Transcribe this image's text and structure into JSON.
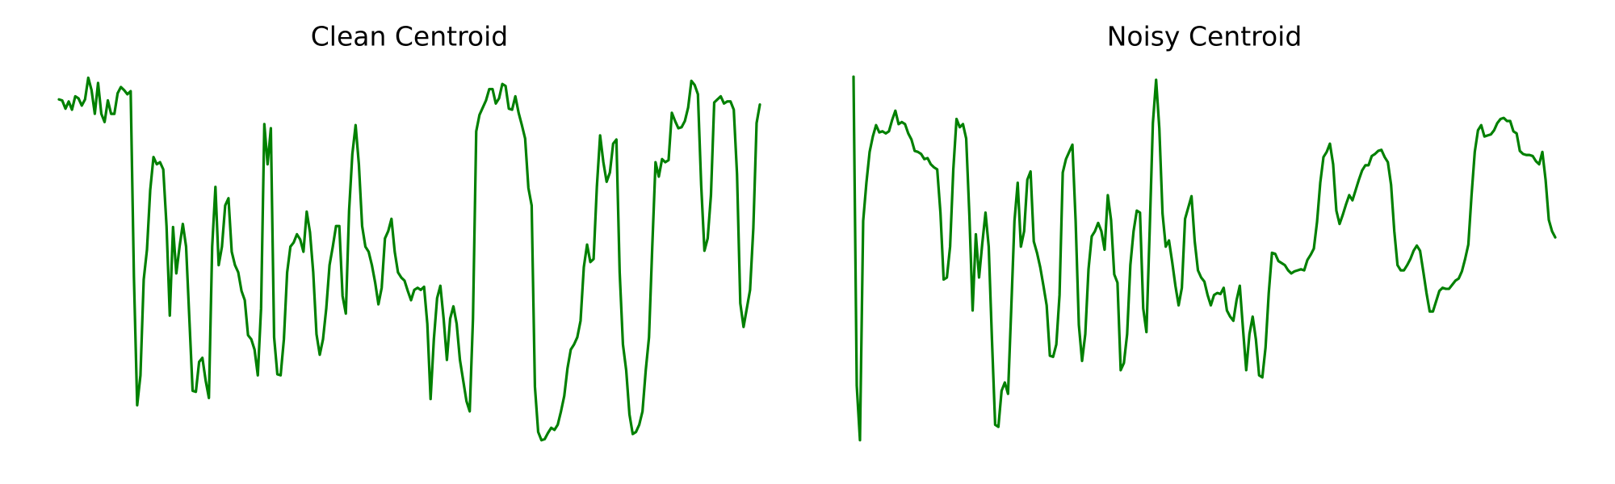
{
  "chart_data": [
    {
      "type": "line",
      "title": "Clean Centroid",
      "color": "#008000",
      "ylim": [
        0,
        380
      ],
      "values": [
        343,
        342,
        334,
        341,
        333,
        346,
        344,
        337,
        343,
        364,
        352,
        329,
        359,
        329,
        321,
        342,
        329,
        329,
        349,
        355,
        352,
        348,
        351,
        170,
        46,
        75,
        168,
        197,
        255,
        287,
        280,
        282,
        275,
        220,
        133,
        219,
        174,
        200,
        222,
        200,
        130,
        60,
        59,
        88,
        92,
        70,
        53,
        200,
        258,
        182,
        200,
        240,
        247,
        195,
        182,
        175,
        157,
        148,
        114,
        110,
        100,
        75,
        140,
        319,
        280,
        315,
        112,
        76,
        75,
        110,
        175,
        200,
        204,
        212,
        207,
        195,
        234,
        214,
        175,
        115,
        95,
        110,
        140,
        182,
        200,
        220,
        220,
        152,
        135,
        235,
        290,
        318,
        280,
        220,
        200,
        195,
        182,
        165,
        144,
        160,
        208,
        215,
        227,
        195,
        175,
        170,
        167,
        157,
        148,
        158,
        160,
        158,
        161,
        125,
        52,
        110,
        150,
        162,
        130,
        90,
        130,
        142,
        125,
        90,
        70,
        50,
        40,
        130,
        312,
        328,
        335,
        342,
        353,
        353,
        339,
        344,
        358,
        356,
        334,
        333,
        346,
        330,
        318,
        305,
        257,
        240,
        64,
        20,
        12,
        13,
        19,
        24,
        22,
        27,
        40,
        55,
        82,
        100,
        105,
        112,
        128,
        180,
        202,
        185,
        188,
        258,
        308,
        282,
        263,
        272,
        300,
        304,
        175,
        105,
        80,
        37,
        18,
        20,
        27,
        40,
        80,
        112,
        200,
        282,
        268,
        285,
        282,
        284,
        330,
        322,
        315,
        316,
        322,
        335,
        361,
        357,
        348,
        260,
        196,
        208,
        250,
        340,
        343,
        346,
        339,
        341,
        341,
        333,
        270,
        145,
        122,
        140,
        158,
        218,
        320,
        338
      ]
    },
    {
      "type": "line",
      "title": "Noisy Centroid",
      "color": "#008000",
      "ylim": [
        0,
        380
      ],
      "values": [
        365,
        65,
        12,
        225,
        262,
        292,
        307,
        318,
        311,
        312,
        310,
        312,
        323,
        332,
        319,
        321,
        319,
        310,
        304,
        293,
        292,
        290,
        285,
        286,
        280,
        277,
        275,
        233,
        168,
        170,
        200,
        275,
        324,
        316,
        319,
        305,
        230,
        138,
        212,
        170,
        203,
        233,
        200,
        110,
        27,
        25,
        60,
        68,
        57,
        140,
        225,
        262,
        200,
        215,
        265,
        273,
        205,
        194,
        180,
        162,
        143,
        94,
        93,
        105,
        153,
        272,
        285,
        292,
        299,
        225,
        124,
        89,
        115,
        178,
        210,
        215,
        223,
        215,
        197,
        250,
        226,
        173,
        165,
        80,
        87,
        115,
        182,
        215,
        235,
        233,
        140,
        117,
        215,
        320,
        362,
        315,
        232,
        200,
        206,
        185,
        162,
        143,
        160,
        227,
        238,
        249,
        205,
        177,
        170,
        166,
        153,
        143,
        153,
        155,
        154,
        160,
        138,
        132,
        128,
        148,
        162,
        120,
        80,
        115,
        132,
        110,
        75,
        73,
        102,
        155,
        194,
        193,
        186,
        184,
        182,
        177,
        174,
        176,
        177,
        178,
        177,
        187,
        192,
        198,
        224,
        262,
        287,
        292,
        300,
        280,
        235,
        222,
        231,
        241,
        250,
        245,
        255,
        265,
        274,
        279,
        279,
        288,
        290,
        293,
        294,
        287,
        282,
        260,
        215,
        182,
        177,
        177,
        182,
        188,
        196,
        201,
        196,
        176,
        155,
        137,
        137,
        147,
        157,
        160,
        159,
        159,
        163,
        167,
        169,
        176,
        188,
        202,
        250,
        292,
        313,
        318,
        307,
        308,
        309,
        313,
        320,
        324,
        325,
        322,
        322,
        312,
        310,
        293,
        290,
        289,
        289,
        288,
        283,
        280,
        292,
        265,
        226,
        215,
        209
      ]
    }
  ]
}
